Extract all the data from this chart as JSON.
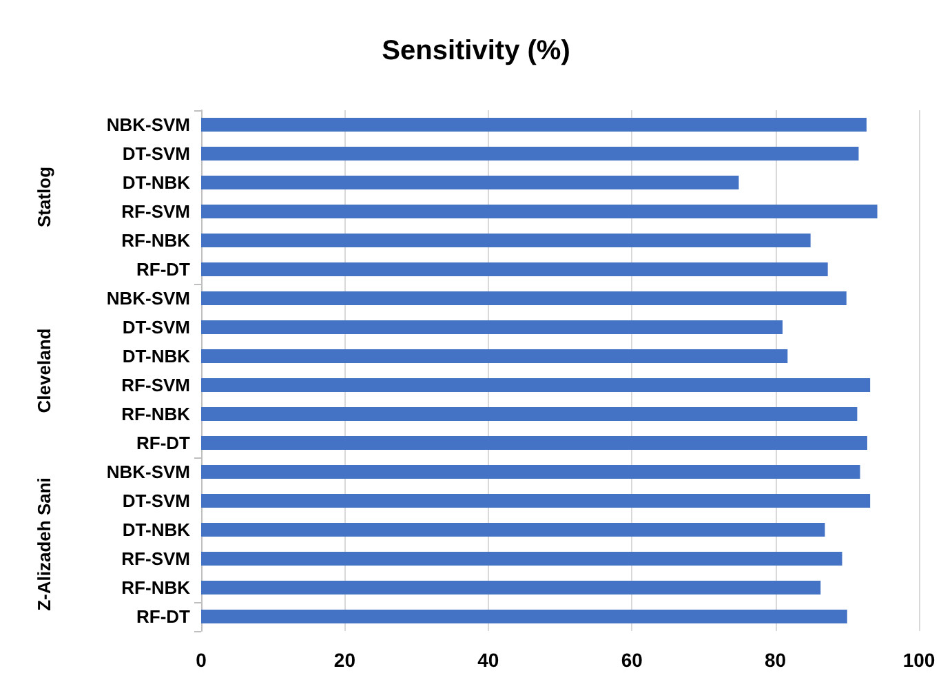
{
  "chart_data": {
    "type": "bar",
    "orientation": "horizontal",
    "title": "Sensitivity (%)",
    "categories": [
      "NBK-SVM",
      "DT-SVM",
      "DT-NBK",
      "RF-SVM",
      "RF-NBK",
      "RF-DT",
      "NBK-SVM",
      "DT-SVM",
      "DT-NBK",
      "RF-SVM",
      "RF-NBK",
      "RF-DT",
      "NBK-SVM",
      "DT-SVM",
      "DT-NBK",
      "RF-SVM",
      "RF-NBK",
      "RF-DT"
    ],
    "values": [
      92.7,
      91.6,
      74.9,
      94.2,
      84.9,
      87.3,
      89.9,
      81.0,
      81.7,
      93.2,
      91.4,
      92.8,
      91.8,
      93.2,
      86.9,
      89.3,
      86.3,
      90.0
    ],
    "color": "#4472c4",
    "annotations": [
      "Statlog",
      "Cleveland",
      "Z-Alizadeh Sani"
    ],
    "xlim": [
      0,
      100
    ],
    "xticks": [
      0,
      20,
      40,
      60,
      80,
      100
    ],
    "grid": "x"
  }
}
